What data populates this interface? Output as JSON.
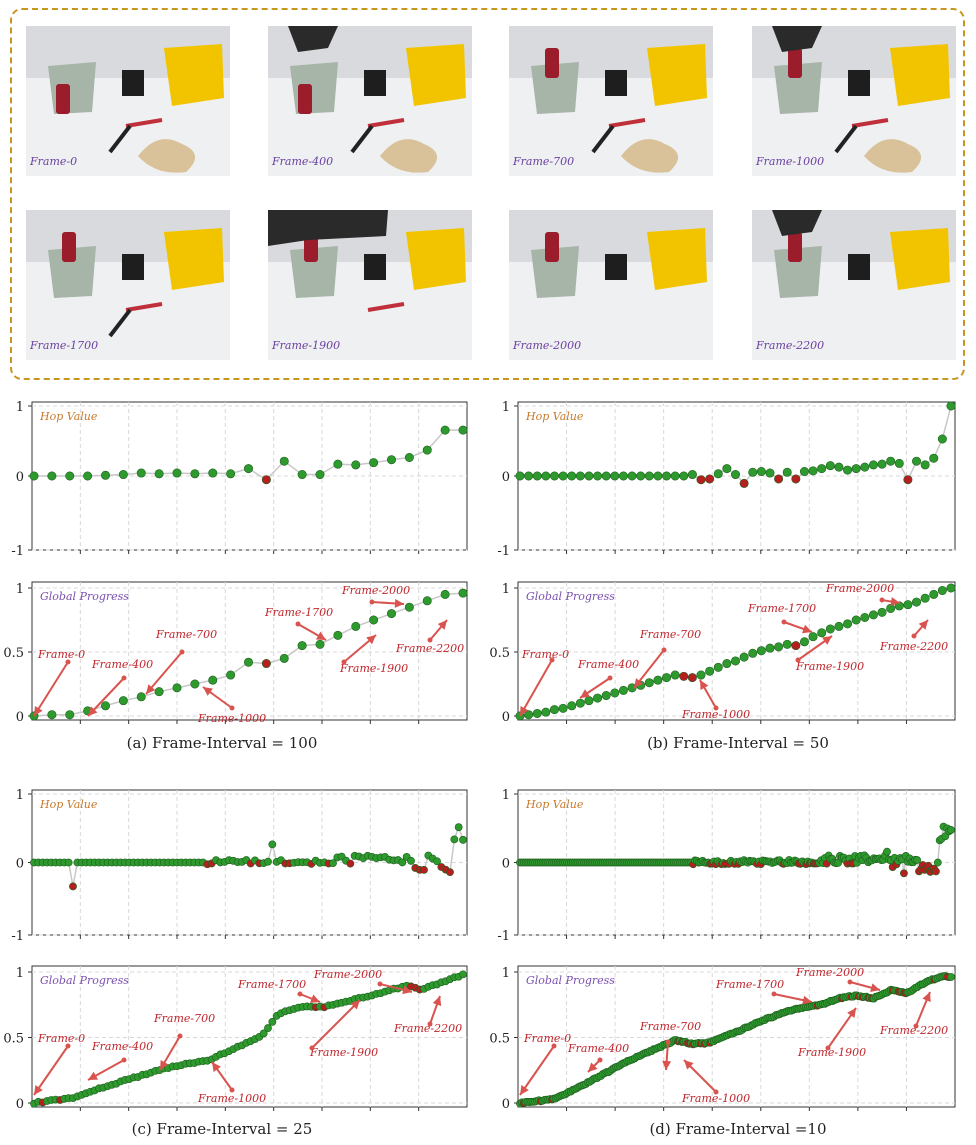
{
  "frames": [
    {
      "label": "Frame-0"
    },
    {
      "label": "Frame-400"
    },
    {
      "label": "Frame-700"
    },
    {
      "label": "Frame-1000"
    },
    {
      "label": "Frame-1700"
    },
    {
      "label": "Frame-1900"
    },
    {
      "label": "Frame-2000"
    },
    {
      "label": "Frame-2200"
    }
  ],
  "colors": {
    "increase": "#2e9a2e",
    "decrease": "#b51f1f",
    "arrow": "#d9534f",
    "line": "#c8c8c8",
    "hop_label": "#c8782a",
    "progress_label": "#7a4fb0",
    "frame_label": "#6a3fa0"
  },
  "annotation_frames": [
    "Frame-0",
    "Frame-400",
    "Frame-700",
    "Frame-1000",
    "Frame-1700",
    "Frame-1900",
    "Frame-2000",
    "Frame-2200"
  ],
  "chart_data": [
    {
      "type": "scatter",
      "panel": "a",
      "caption": "(a) Frame-Interval = 100",
      "points": 25,
      "hop": {
        "title": "Hop Value",
        "ylim": [
          -1,
          1
        ],
        "yticks": [
          "1",
          "0",
          "-1"
        ],
        "values": [
          0,
          0,
          0,
          0,
          0.01,
          0.02,
          0.04,
          0.03,
          0.04,
          0.03,
          0.04,
          0.03,
          0.1,
          -0.05,
          0.2,
          0.02,
          0.02,
          0.16,
          0.15,
          0.18,
          0.22,
          0.25,
          0.35,
          0.62,
          0.62
        ]
      },
      "progress": {
        "title": "Global Progress",
        "ylim": [
          0,
          1
        ],
        "yticks": [
          "1",
          "0.5",
          "0"
        ],
        "values": [
          0,
          0.01,
          0.01,
          0.04,
          0.08,
          0.12,
          0.15,
          0.19,
          0.22,
          0.25,
          0.28,
          0.32,
          0.42,
          0.41,
          0.45,
          0.55,
          0.56,
          0.63,
          0.7,
          0.75,
          0.8,
          0.85,
          0.9,
          0.95,
          0.96
        ]
      }
    },
    {
      "type": "scatter",
      "panel": "b",
      "caption": "(b) Frame-Interval = 50",
      "points": 51,
      "hop": {
        "title": "Hop Value",
        "ylim": [
          -1,
          1
        ],
        "yticks": [
          "1",
          "0",
          "-1"
        ],
        "values": [
          0,
          0,
          0,
          0,
          0,
          0,
          0,
          0,
          0,
          0,
          0,
          0,
          0,
          0,
          0,
          0,
          0,
          0,
          0,
          0,
          0.02,
          -0.05,
          -0.04,
          0.03,
          0.1,
          0.02,
          -0.1,
          0.05,
          0.06,
          0.04,
          -0.04,
          0.05,
          -0.04,
          0.06,
          0.07,
          0.1,
          0.14,
          0.12,
          0.08,
          0.1,
          0.12,
          0.15,
          0.16,
          0.2,
          0.17,
          -0.05,
          0.2,
          0.15,
          0.24,
          0.5,
          1
        ]
      },
      "progress": {
        "title": "Global Progress",
        "ylim": [
          0,
          1
        ],
        "yticks": [
          "1",
          "0.5",
          "0"
        ],
        "values": [
          0,
          0.01,
          0.02,
          0.03,
          0.05,
          0.06,
          0.08,
          0.1,
          0.12,
          0.14,
          0.16,
          0.18,
          0.2,
          0.22,
          0.24,
          0.26,
          0.28,
          0.3,
          0.32,
          0.31,
          0.3,
          0.32,
          0.35,
          0.38,
          0.41,
          0.43,
          0.46,
          0.49,
          0.51,
          0.53,
          0.54,
          0.56,
          0.55,
          0.58,
          0.62,
          0.65,
          0.68,
          0.7,
          0.72,
          0.75,
          0.77,
          0.79,
          0.81,
          0.84,
          0.86,
          0.87,
          0.89,
          0.92,
          0.95,
          0.98,
          1
        ]
      }
    },
    {
      "type": "scatter",
      "panel": "c",
      "caption": "(c) Frame-Interval = 25",
      "points": 100,
      "hop": {
        "title": "Hop Value",
        "ylim": [
          -1,
          1
        ],
        "yticks": [
          "1",
          "0",
          "-1"
        ],
        "generator": "dense-hop-c"
      },
      "progress": {
        "title": "Global Progress",
        "ylim": [
          0,
          1
        ],
        "yticks": [
          "1",
          "0.5",
          "0"
        ],
        "knots": [
          [
            0,
            0
          ],
          [
            0.09,
            0.04
          ],
          [
            0.18,
            0.14
          ],
          [
            0.28,
            0.24
          ],
          [
            0.34,
            0.29
          ],
          [
            0.41,
            0.33
          ],
          [
            0.53,
            0.51
          ],
          [
            0.57,
            0.68
          ],
          [
            0.63,
            0.74
          ],
          [
            0.67,
            0.73
          ],
          [
            0.76,
            0.8
          ],
          [
            0.82,
            0.85
          ],
          [
            0.87,
            0.9
          ],
          [
            0.9,
            0.86
          ],
          [
            0.94,
            0.91
          ],
          [
            1,
            0.98
          ]
        ]
      }
    },
    {
      "type": "scatter",
      "panel": "d",
      "caption": "(d) Frame-Interval =10",
      "points": 230,
      "hop": {
        "title": "Hop Value",
        "ylim": [
          -1,
          1
        ],
        "yticks": [
          "1",
          "0",
          "-1"
        ],
        "generator": "dense-hop-d"
      },
      "progress": {
        "title": "Global Progress",
        "ylim": [
          0,
          1
        ],
        "yticks": [
          "1",
          "0.5",
          "0"
        ],
        "knots": [
          [
            0,
            0
          ],
          [
            0.08,
            0.03
          ],
          [
            0.16,
            0.16
          ],
          [
            0.25,
            0.32
          ],
          [
            0.34,
            0.45
          ],
          [
            0.36,
            0.48
          ],
          [
            0.4,
            0.45
          ],
          [
            0.44,
            0.46
          ],
          [
            0.5,
            0.54
          ],
          [
            0.57,
            0.64
          ],
          [
            0.64,
            0.72
          ],
          [
            0.7,
            0.75
          ],
          [
            0.74,
            0.8
          ],
          [
            0.78,
            0.82
          ],
          [
            0.82,
            0.8
          ],
          [
            0.86,
            0.86
          ],
          [
            0.9,
            0.84
          ],
          [
            0.94,
            0.92
          ],
          [
            0.98,
            0.97
          ],
          [
            1,
            0.96
          ]
        ]
      }
    }
  ]
}
